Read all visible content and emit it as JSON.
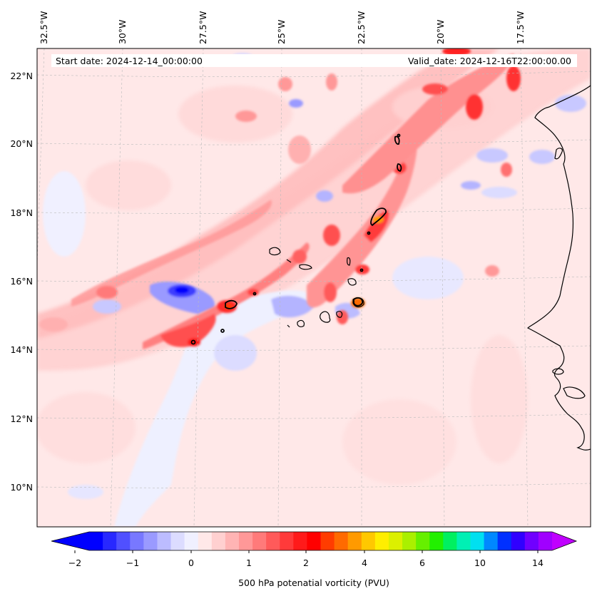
{
  "map": {
    "start_date": "Start date: 2024-12-14_00:00:00",
    "valid_date": "Valid_date: 2024-12-16T22:00:00.00",
    "lon_labels": [
      "32.5°W",
      "30°W",
      "27.5°W",
      "25°W",
      "22.5°W",
      "20°W",
      "17.5°W"
    ],
    "lat_labels": [
      "22°N",
      "20°N",
      "18°N",
      "16°N",
      "14°N",
      "12°N",
      "10°N"
    ],
    "grid": true,
    "field": "500 hPa potential vorticity",
    "background_color": "#ffe8e8"
  },
  "colorbar": {
    "label": "500 hPa potenatial vorticity (PVU)",
    "tick_labels": [
      "−2",
      "−1",
      "0",
      "1",
      "2",
      "4",
      "6",
      "10",
      "14"
    ],
    "extend": "both",
    "colors": [
      "#0000ff",
      "#2828ff",
      "#5050ff",
      "#7878ff",
      "#9a9aff",
      "#bcbcff",
      "#dcdcff",
      "#f0f0ff",
      "#ffe8e8",
      "#ffd0d0",
      "#ffb4b4",
      "#ff9898",
      "#ff7a7a",
      "#ff5a5a",
      "#ff3a3a",
      "#ff1a1a",
      "#ff0000",
      "#ff3c00",
      "#ff6a00",
      "#ff9a00",
      "#ffc800",
      "#ffee00",
      "#dcf000",
      "#aaf000",
      "#66f000",
      "#22f000",
      "#00f060",
      "#00f0b4",
      "#00e0f0",
      "#0088ff",
      "#0030ff",
      "#3000ff",
      "#7000ff",
      "#a000ff"
    ],
    "under_color": "#0000ff",
    "over_color": "#c000ff"
  }
}
